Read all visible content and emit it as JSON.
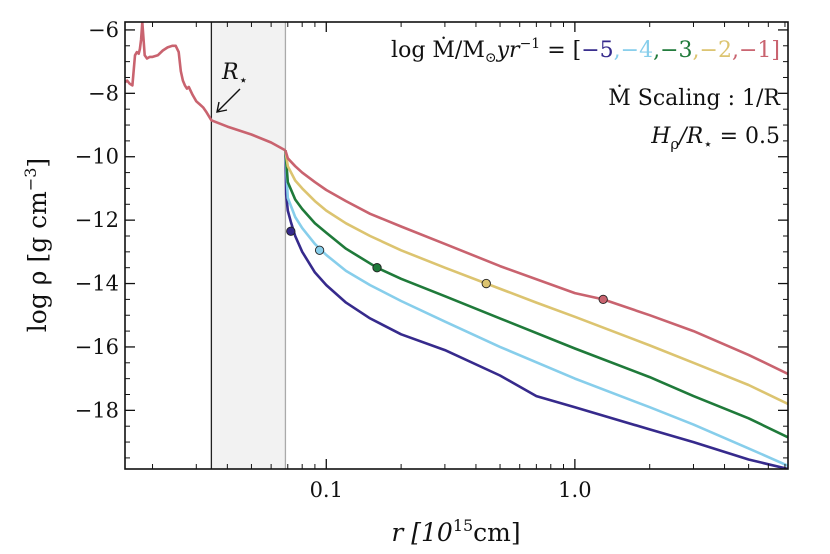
{
  "chart_data": {
    "type": "line",
    "title": "",
    "xlabel": "r [10^15 cm]",
    "xlabel_parts": {
      "base": "r [10",
      "sup": "15",
      "unit": "cm]"
    },
    "ylabel": "log ρ [g cm^-3]",
    "ylabel_parts": {
      "main": "log ρ [g cm",
      "sup": "−3",
      "close": "]"
    },
    "xscale": "log",
    "xlim": [
      0.0155,
      7.2
    ],
    "ylim": [
      -19.85,
      -5.75
    ],
    "x_ticks": [
      {
        "value": 0.1,
        "label": "0.1"
      },
      {
        "value": 1.0,
        "label": "1.0"
      }
    ],
    "y_ticks": [
      {
        "value": -6,
        "label": "−6"
      },
      {
        "value": -8,
        "label": "−8"
      },
      {
        "value": -10,
        "label": "−10"
      },
      {
        "value": -12,
        "label": "−12"
      },
      {
        "value": -14,
        "label": "−14"
      },
      {
        "value": -16,
        "label": "−16"
      },
      {
        "value": -18,
        "label": "−18"
      }
    ],
    "stellar_radius": 0.0345,
    "shaded_region": [
      0.0345,
      0.0685
    ],
    "progenitor": {
      "color": "#c9636f",
      "x": [
        0.0155,
        0.0158,
        0.0162,
        0.0166,
        0.017,
        0.0173,
        0.0176,
        0.0178,
        0.018,
        0.0182,
        0.0186,
        0.019,
        0.0195,
        0.02,
        0.021,
        0.022,
        0.023,
        0.024,
        0.0248,
        0.0255,
        0.026,
        0.0265,
        0.027,
        0.0275,
        0.028,
        0.029,
        0.03,
        0.031,
        0.032,
        0.033,
        0.0345,
        0.04,
        0.05,
        0.06,
        0.0685
      ],
      "y": [
        -7.65,
        -7.6,
        -7.7,
        -7.75,
        -6.8,
        -6.7,
        -6.75,
        -6.6,
        -6.3,
        -5.75,
        -6.8,
        -6.9,
        -6.85,
        -6.85,
        -6.8,
        -6.65,
        -6.55,
        -6.5,
        -6.5,
        -6.7,
        -7.3,
        -7.6,
        -7.75,
        -7.85,
        -7.8,
        -8.05,
        -8.25,
        -8.35,
        -8.45,
        -8.6,
        -8.85,
        -9.05,
        -9.3,
        -9.55,
        -9.8
      ]
    },
    "series": [
      {
        "name": "−5",
        "color": "#362a8c",
        "x": [
          0.0685,
          0.069,
          0.07,
          0.072,
          0.075,
          0.08,
          0.09,
          0.1,
          0.12,
          0.15,
          0.2,
          0.3,
          0.5,
          0.7,
          1.0,
          2.0,
          3.0,
          5.0,
          7.2
        ],
        "y": [
          -9.8,
          -11.2,
          -11.7,
          -12.05,
          -12.5,
          -13.0,
          -13.65,
          -14.05,
          -14.6,
          -15.1,
          -15.6,
          -16.1,
          -16.9,
          -17.55,
          -17.9,
          -18.6,
          -19.0,
          -19.55,
          -19.85
        ],
        "marker": [
          0.072,
          -12.35
        ]
      },
      {
        "name": "−4",
        "color": "#87ceeb",
        "x": [
          0.0685,
          0.07,
          0.075,
          0.08,
          0.09,
          0.1,
          0.12,
          0.15,
          0.2,
          0.3,
          0.5,
          1.0,
          2.0,
          3.0,
          5.0,
          7.2
        ],
        "y": [
          -9.8,
          -11.3,
          -11.9,
          -12.25,
          -12.75,
          -13.1,
          -13.6,
          -14.05,
          -14.55,
          -15.2,
          -16.0,
          -17.0,
          -17.9,
          -18.45,
          -19.2,
          -19.75
        ],
        "marker": [
          0.094,
          -12.95
        ]
      },
      {
        "name": "−3",
        "color": "#1f7a3a",
        "x": [
          0.0685,
          0.07,
          0.075,
          0.08,
          0.09,
          0.1,
          0.12,
          0.16,
          0.2,
          0.3,
          0.5,
          1.0,
          2.0,
          3.0,
          5.0,
          7.2
        ],
        "y": [
          -9.8,
          -10.8,
          -11.35,
          -11.65,
          -12.1,
          -12.4,
          -12.9,
          -13.5,
          -13.85,
          -14.4,
          -15.1,
          -16.05,
          -16.95,
          -17.55,
          -18.25,
          -18.85
        ],
        "marker": [
          0.16,
          -13.5
        ]
      },
      {
        "name": "−2",
        "color": "#dcc470",
        "x": [
          0.0685,
          0.07,
          0.075,
          0.08,
          0.09,
          0.1,
          0.12,
          0.15,
          0.2,
          0.3,
          0.44,
          0.7,
          1.0,
          2.0,
          3.0,
          5.0,
          7.2
        ],
        "y": [
          -9.8,
          -10.3,
          -10.75,
          -11.0,
          -11.4,
          -11.7,
          -12.1,
          -12.5,
          -12.95,
          -13.5,
          -14.0,
          -14.6,
          -15.05,
          -15.95,
          -16.5,
          -17.2,
          -17.8
        ],
        "marker": [
          0.44,
          -14.0
        ]
      },
      {
        "name": "−1",
        "color": "#c9636f",
        "x": [
          0.0685,
          0.07,
          0.075,
          0.08,
          0.09,
          0.1,
          0.12,
          0.15,
          0.2,
          0.3,
          0.5,
          1.0,
          1.3,
          2.0,
          3.0,
          5.0,
          7.2
        ],
        "y": [
          -9.8,
          -10.05,
          -10.3,
          -10.5,
          -10.8,
          -11.05,
          -11.4,
          -11.8,
          -12.2,
          -12.75,
          -13.45,
          -14.3,
          -14.5,
          -15.0,
          -15.5,
          -16.25,
          -16.85
        ],
        "marker": [
          1.3,
          -14.5
        ]
      }
    ],
    "annotations": {
      "rstar": {
        "main": "R",
        "sub": "⋆"
      },
      "mdot_legend": {
        "prefix": "log Ṁ/M",
        "sun_sub": "⊙",
        "unit": "yr",
        "unit_sup": "−1",
        "equals": " = [",
        "sep": ",",
        "close": "]"
      },
      "scaling": "Ṁ Scaling : 1/R",
      "hscale": {
        "main": "H",
        "sub": "ρ",
        "rest": "/R",
        "rest_sub": "⋆",
        "value": " = 0.5"
      }
    }
  }
}
